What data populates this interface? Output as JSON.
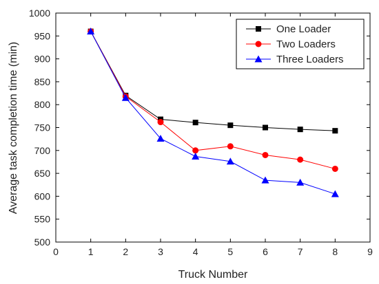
{
  "chart_data": {
    "type": "line",
    "xlabel": "Truck Number",
    "ylabel": "Average task completion time (min)",
    "xlim": [
      0,
      9
    ],
    "ylim": [
      500,
      1000
    ],
    "x_ticks": [
      "0",
      "1",
      "2",
      "3",
      "4",
      "5",
      "6",
      "7",
      "8",
      "9"
    ],
    "y_ticks": [
      "500",
      "550",
      "600",
      "650",
      "700",
      "750",
      "800",
      "850",
      "900",
      "950",
      "1000"
    ],
    "x": [
      1,
      2,
      3,
      4,
      5,
      6,
      7,
      8
    ],
    "grid": false,
    "legend_position": "top-right",
    "series": [
      {
        "name": "One Loader",
        "color": "#000000",
        "marker": "square",
        "values": [
          960,
          820,
          768,
          761,
          755,
          750,
          746,
          743
        ]
      },
      {
        "name": "Two Loaders",
        "color": "#ff0000",
        "marker": "circle",
        "values": [
          960,
          818,
          762,
          700,
          709,
          690,
          680,
          660
        ]
      },
      {
        "name": "Three Loaders",
        "color": "#0000ff",
        "marker": "triangle",
        "values": [
          960,
          815,
          726,
          687,
          676,
          635,
          630,
          605
        ]
      }
    ]
  }
}
